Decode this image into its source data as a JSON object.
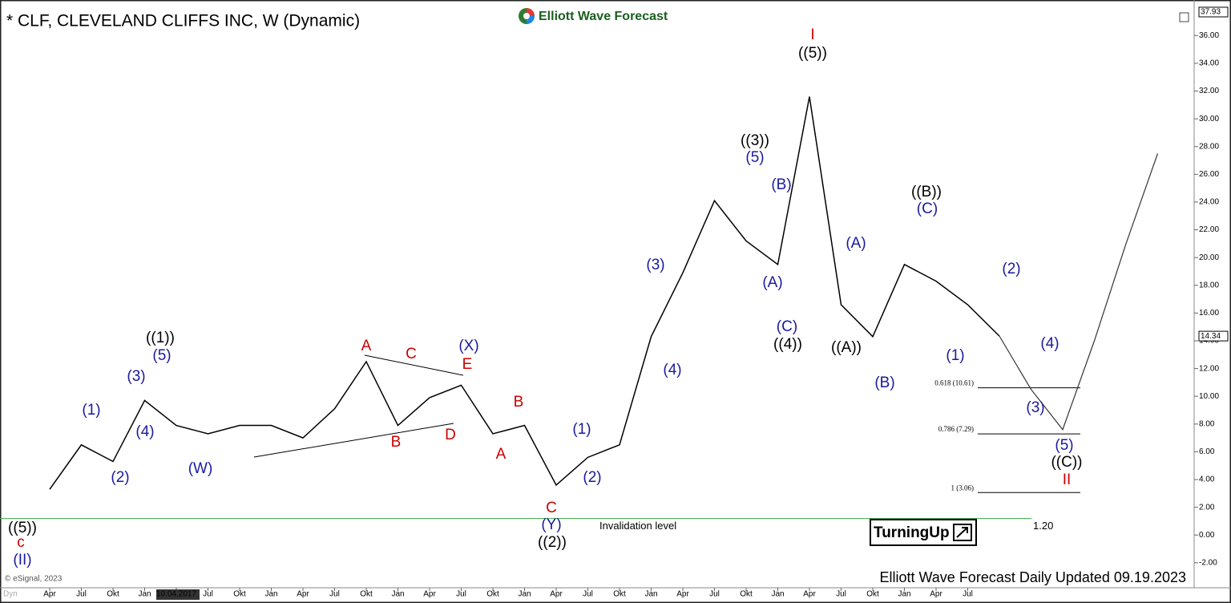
{
  "chart_data": {
    "type": "line",
    "title": "* CLF, CLEVELAND CLIFFS INC, W (Dynamic)",
    "brand": "Elliott Wave Forecast",
    "badge": "TurningUp",
    "copyright": "© eSignal, 2023",
    "footer": "Elliott Wave Forecast Daily Updated 09.19.2023",
    "corner_label": "Dyn",
    "categories": [
      "Apr",
      "Jul",
      "Okt",
      "Jan",
      "10.04.2017",
      "Jul",
      "Okt",
      "Jan",
      "Apr",
      "Jul",
      "Okt",
      "Jan",
      "Apr",
      "Jul",
      "Okt",
      "Jan",
      "Apr",
      "Jul",
      "Okt",
      "Jan",
      "Apr",
      "Jul",
      "Okt",
      "Jan",
      "Apr",
      "Jul",
      "Okt",
      "Jan",
      "Apr",
      "Jul",
      null,
      null,
      null,
      null,
      null,
      null
    ],
    "series": [
      {
        "name": "CLF",
        "color": "#000000",
        "values": [
          3.3,
          6.5,
          5.3,
          9.7,
          7.9,
          7.3,
          7.9,
          7.9,
          7.0,
          9.1,
          12.5,
          7.9,
          9.9,
          10.8,
          7.3,
          7.9,
          3.6,
          5.6,
          6.5,
          14.3,
          18.9,
          24.1,
          21.2,
          19.5,
          31.6,
          16.6,
          14.3,
          19.5,
          18.3,
          16.6,
          14.34,
          null,
          null,
          null,
          null,
          null
        ]
      },
      {
        "name": "Projection",
        "color": "#333333",
        "values": [
          null,
          null,
          null,
          null,
          null,
          null,
          null,
          null,
          null,
          null,
          null,
          null,
          null,
          null,
          null,
          null,
          null,
          null,
          null,
          null,
          null,
          null,
          null,
          null,
          null,
          null,
          null,
          null,
          null,
          null,
          14.34,
          10.5,
          7.6,
          14.0,
          21.0,
          27.5
        ]
      }
    ],
    "ylim": [
      -3.8,
      38.1
    ],
    "yticks": [
      {
        "value": -2,
        "label": "-2.00"
      },
      {
        "value": 0,
        "label": "0.00"
      },
      {
        "value": 2,
        "label": "2.00"
      },
      {
        "value": 4,
        "label": "4.00"
      },
      {
        "value": 6,
        "label": "6.00"
      },
      {
        "value": 8,
        "label": "8.00"
      },
      {
        "value": 10,
        "label": "10.00"
      },
      {
        "value": 12,
        "label": "12.00"
      },
      {
        "value": 14,
        "label": "14.00"
      },
      {
        "value": 16,
        "label": "16.00"
      },
      {
        "value": 18,
        "label": "18.00"
      },
      {
        "value": 20,
        "label": "20.00"
      },
      {
        "value": 22,
        "label": "22.00"
      },
      {
        "value": 24,
        "label": "24.00"
      },
      {
        "value": 26,
        "label": "26.00"
      },
      {
        "value": 28,
        "label": "28.00"
      },
      {
        "value": 30,
        "label": "30.00"
      },
      {
        "value": 32,
        "label": "32.00"
      },
      {
        "value": 34,
        "label": "34.00"
      },
      {
        "value": 36,
        "label": "36.00"
      }
    ],
    "price_markers": [
      37.93,
      14.34
    ],
    "fib_levels": [
      {
        "label": "0.618 (10.61)",
        "value": 10.61
      },
      {
        "label": "0.786 (7.29)",
        "value": 7.29
      },
      {
        "label": "1 (3.06)",
        "value": 3.06
      }
    ],
    "invalidation": {
      "label": "Invalidation level",
      "value": 1.2,
      "value_label": "1.20",
      "color": "#4caf50"
    },
    "annotations": [
      {
        "text": "(1)",
        "color": "#1a1a9e"
      },
      {
        "text": "(2)",
        "color": "#1a1a9e"
      },
      {
        "text": "(3)",
        "color": "#1a1a9e"
      },
      {
        "text": "(4)",
        "color": "#1a1a9e"
      },
      {
        "text": "(5)",
        "color": "#1a1a9e"
      },
      {
        "text": "(W)",
        "color": "#1a1a9e"
      },
      {
        "text": "(X)",
        "color": "#1a1a9e"
      },
      {
        "text": "(1)",
        "color": "#1a1a9e"
      },
      {
        "text": "(2)",
        "color": "#1a1a9e"
      },
      {
        "text": "(Y)",
        "color": "#1a1a9e"
      },
      {
        "text": "(3)",
        "color": "#1a1a9e"
      },
      {
        "text": "(4)",
        "color": "#1a1a9e"
      },
      {
        "text": "(5)",
        "color": "#1a1a9e"
      },
      {
        "text": "(B)",
        "color": "#1a1a9e"
      },
      {
        "text": "(A)",
        "color": "#1a1a9e"
      },
      {
        "text": "(C)",
        "color": "#1a1a9e"
      },
      {
        "text": "(A)",
        "color": "#1a1a9e"
      },
      {
        "text": "(B)",
        "color": "#1a1a9e"
      },
      {
        "text": "(C)",
        "color": "#1a1a9e"
      },
      {
        "text": "(1)",
        "color": "#1a1a9e"
      },
      {
        "text": "(2)",
        "color": "#1a1a9e"
      },
      {
        "text": "(3)",
        "color": "#1a1a9e"
      },
      {
        "text": "(4)",
        "color": "#1a1a9e"
      },
      {
        "text": "(5)",
        "color": "#1a1a9e"
      },
      {
        "text": "(II)",
        "color": "#1a1a9e"
      },
      {
        "text": "((5))",
        "color": "#000000"
      },
      {
        "text": "((1))",
        "color": "#000000"
      },
      {
        "text": "((2))",
        "color": "#000000"
      },
      {
        "text": "((3))",
        "color": "#000000"
      },
      {
        "text": "((4))",
        "color": "#000000"
      },
      {
        "text": "((5))",
        "color": "#000000"
      },
      {
        "text": "((A))",
        "color": "#000000"
      },
      {
        "text": "((B))",
        "color": "#000000"
      },
      {
        "text": "((C))",
        "color": "#000000"
      },
      {
        "text": "c",
        "color": "#cc0000"
      },
      {
        "text": "A",
        "color": "#cc0000"
      },
      {
        "text": "B",
        "color": "#cc0000"
      },
      {
        "text": "C",
        "color": "#cc0000"
      },
      {
        "text": "D",
        "color": "#cc0000"
      },
      {
        "text": "E",
        "color": "#cc0000"
      },
      {
        "text": "A",
        "color": "#cc0000"
      },
      {
        "text": "B",
        "color": "#cc0000"
      },
      {
        "text": "C",
        "color": "#cc0000"
      },
      {
        "text": "I",
        "color": "#cc0000"
      },
      {
        "text": "II",
        "color": "#cc0000"
      }
    ]
  }
}
